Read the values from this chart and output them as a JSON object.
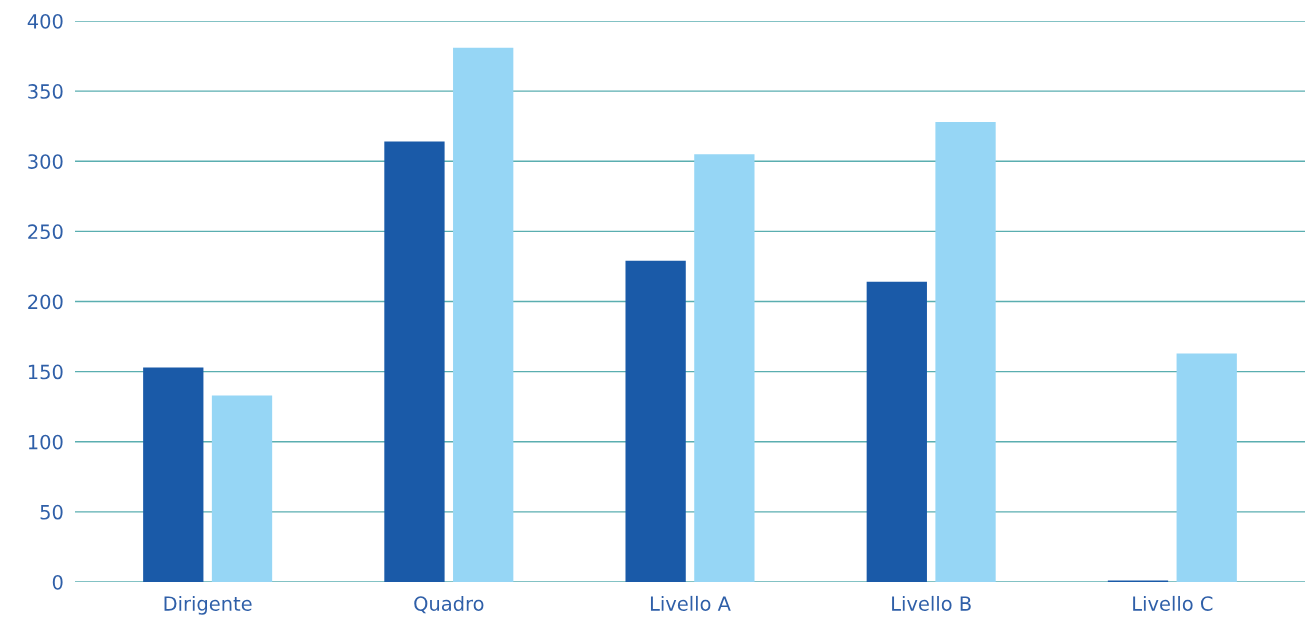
{
  "chart_data": {
    "type": "bar",
    "categories": [
      "Dirigente",
      "Quadro",
      "Livello A",
      "Livello B",
      "Livello C"
    ],
    "series": [
      {
        "color": "#1a5aa8",
        "values": [
          153,
          314,
          229,
          214,
          1
        ]
      },
      {
        "color": "#96d6f5",
        "values": [
          133,
          381,
          305,
          328,
          163
        ]
      }
    ],
    "ylim": [
      0,
      400
    ],
    "yticks": [
      0,
      50,
      100,
      150,
      200,
      250,
      300,
      350,
      400
    ],
    "grid": "y",
    "legend": false
  }
}
